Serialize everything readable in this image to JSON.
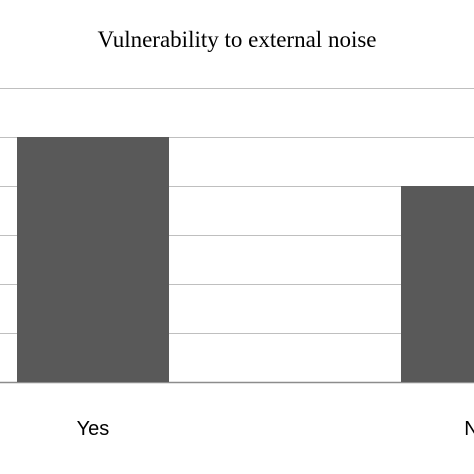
{
  "chart_data": {
    "type": "bar",
    "title": "Vulnerability to external noise",
    "categories": [
      "Yes",
      "No"
    ],
    "values": [
      5,
      4
    ],
    "ylim": [
      0,
      6
    ],
    "grid": true,
    "legend": "none",
    "xlabel": "",
    "ylabel": "",
    "colors": {
      "bar": "#595959",
      "grid": "#bfbfbf",
      "axis": "#8c8c8c"
    }
  }
}
